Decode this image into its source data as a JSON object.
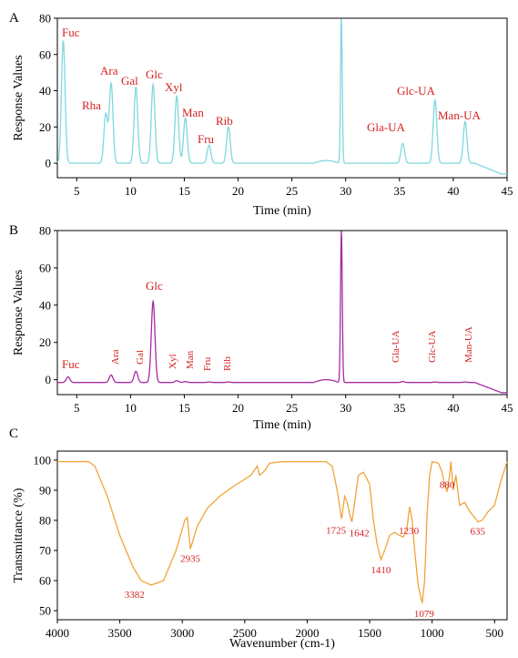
{
  "chart_data": [
    {
      "panel_label": "A",
      "type": "line",
      "xlabel": "Time (min)",
      "ylabel": "Response Values",
      "xlim": [
        3.2,
        45
      ],
      "ylim": [
        -8,
        80
      ],
      "xticks": [
        5,
        10,
        15,
        20,
        25,
        30,
        35,
        40,
        45
      ],
      "yticks": [
        0,
        20,
        40,
        60,
        80
      ],
      "grid": false,
      "color": "#7fd8de",
      "baseline": 0,
      "end_level": -6,
      "peaks": [
        {
          "x": 3.75,
          "y": 67.5,
          "label": "Fuc"
        },
        {
          "x": 7.7,
          "y": 27,
          "label": "Rha"
        },
        {
          "x": 8.2,
          "y": 44,
          "label": "Ara"
        },
        {
          "x": 10.5,
          "y": 42,
          "label": "Gal"
        },
        {
          "x": 12.1,
          "y": 43.5,
          "label": "Glc"
        },
        {
          "x": 14.3,
          "y": 37,
          "label": "Xyl"
        },
        {
          "x": 15.1,
          "y": 25,
          "label": "Man"
        },
        {
          "x": 17.3,
          "y": 10,
          "label": "Fru"
        },
        {
          "x": 19.1,
          "y": 20,
          "label": "Rib"
        },
        {
          "x": 29.6,
          "y": 80,
          "label": ""
        },
        {
          "x": 35.3,
          "y": 11,
          "label": "Gla-UA"
        },
        {
          "x": 38.3,
          "y": 35,
          "label": "Glc-UA"
        },
        {
          "x": 41.1,
          "y": 23,
          "label": "Man-UA"
        }
      ]
    },
    {
      "panel_label": "B",
      "type": "line",
      "xlabel": "Time (min)",
      "ylabel": "Response Values",
      "xlim": [
        3.2,
        45
      ],
      "ylim": [
        -8,
        80
      ],
      "xticks": [
        5,
        10,
        15,
        20,
        25,
        30,
        35,
        40,
        45
      ],
      "yticks": [
        0,
        20,
        40,
        60,
        80
      ],
      "grid": false,
      "color": "#a62ca0",
      "baseline": -1.5,
      "end_level": -7,
      "peaks": [
        {
          "x": 4.2,
          "y": 1.5,
          "label": "Fuc"
        },
        {
          "x": 8.2,
          "y": 2.5,
          "label": "Ara"
        },
        {
          "x": 10.5,
          "y": 4.5,
          "label": "Gal"
        },
        {
          "x": 12.1,
          "y": 42,
          "label": "Glc"
        },
        {
          "x": 14.3,
          "y": -0.5,
          "label": "Xyl"
        },
        {
          "x": 15.1,
          "y": -1,
          "label": "Man"
        },
        {
          "x": 17.3,
          "y": -1.2,
          "label": "Fru"
        },
        {
          "x": 19.1,
          "y": -1.2,
          "label": "Rib"
        },
        {
          "x": 29.6,
          "y": 80,
          "label": ""
        },
        {
          "x": 35.3,
          "y": -1,
          "label": "Gla-UA"
        },
        {
          "x": 38.3,
          "y": -1.2,
          "label": "Glc-UA"
        },
        {
          "x": 41.1,
          "y": -1.2,
          "label": "Man-UA"
        }
      ]
    },
    {
      "panel_label": "C",
      "type": "line",
      "xlabel": "Wavenumber (cm-1)",
      "ylabel": "Transmittance (%)",
      "xlim": [
        4000,
        400
      ],
      "ylim": [
        47,
        103
      ],
      "xticks": [
        4000,
        3500,
        3000,
        2500,
        2000,
        1500,
        1000,
        500
      ],
      "yticks": [
        50,
        60,
        70,
        80,
        90,
        100
      ],
      "grid": false,
      "color": "#f0a43c",
      "x": [
        4000,
        3850,
        3750,
        3700,
        3600,
        3500,
        3400,
        3330,
        3250,
        3150,
        3050,
        2980,
        2960,
        2935,
        2880,
        2800,
        2700,
        2600,
        2450,
        2400,
        2380,
        2340,
        2300,
        2200,
        2000,
        1850,
        1800,
        1760,
        1725,
        1700,
        1680,
        1660,
        1642,
        1620,
        1590,
        1550,
        1500,
        1470,
        1440,
        1410,
        1380,
        1340,
        1300,
        1260,
        1230,
        1200,
        1180,
        1160,
        1140,
        1110,
        1079,
        1060,
        1040,
        1020,
        1000,
        975,
        950,
        920,
        900,
        880,
        860,
        850,
        830,
        810,
        780,
        740,
        700,
        650,
        635,
        600,
        550,
        500,
        450,
        400
      ],
      "y": [
        99.5,
        99.5,
        99.5,
        98,
        88,
        75,
        65,
        60,
        58.5,
        60,
        70,
        80,
        81,
        70.5,
        78,
        84,
        88,
        91,
        95,
        98,
        95,
        96.5,
        99,
        99.5,
        99.5,
        99.5,
        98,
        90,
        80.5,
        88,
        86,
        82,
        79.5,
        86,
        95,
        96,
        92,
        80,
        72,
        67,
        70,
        75,
        76,
        75,
        74.5,
        78,
        84.5,
        80,
        70,
        58,
        52.5,
        60,
        82,
        95,
        99.5,
        99.3,
        99,
        96,
        92,
        89.5,
        95,
        99.5,
        90,
        95,
        85,
        86,
        83,
        80.5,
        79.5,
        80,
        83,
        85,
        93,
        99.5
      ],
      "annotations": [
        {
          "x": 3382,
          "y": 58.5,
          "label": "3382"
        },
        {
          "x": 2935,
          "y": 70.5,
          "label": "2935"
        },
        {
          "x": 1725,
          "y": 80.5,
          "label": "1725"
        },
        {
          "x": 1642,
          "y": 79.5,
          "label": "1642"
        },
        {
          "x": 1410,
          "y": 67,
          "label": "1410"
        },
        {
          "x": 1230,
          "y": 74.5,
          "label": "1230"
        },
        {
          "x": 1079,
          "y": 52.5,
          "label": "1079"
        },
        {
          "x": 880,
          "y": 89.5,
          "label": "880"
        },
        {
          "x": 635,
          "y": 79.5,
          "label": "635"
        }
      ]
    }
  ]
}
